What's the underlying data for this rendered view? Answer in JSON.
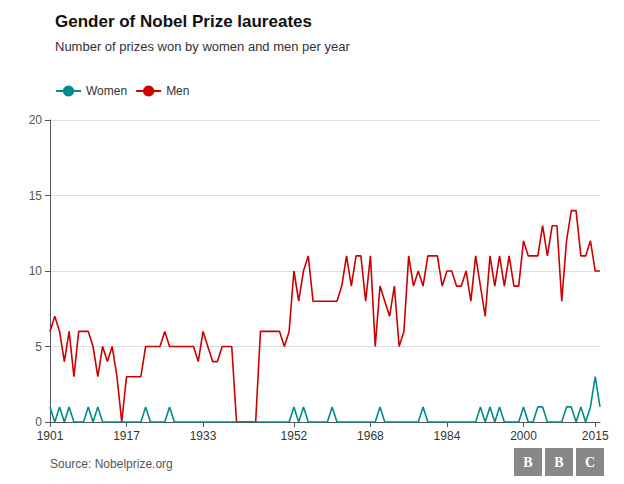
{
  "chart_data": {
    "type": "line",
    "title": "Gender of Nobel Prize laureates",
    "subtitle": "Number of prizes won by women and men per year",
    "source": "Source: Nobelprize.org",
    "logo": [
      "B",
      "B",
      "C"
    ],
    "x": [
      1901,
      1902,
      1903,
      1904,
      1905,
      1906,
      1907,
      1908,
      1909,
      1910,
      1911,
      1912,
      1913,
      1914,
      1915,
      1916,
      1917,
      1918,
      1919,
      1920,
      1921,
      1922,
      1923,
      1924,
      1925,
      1926,
      1927,
      1928,
      1929,
      1930,
      1931,
      1932,
      1933,
      1934,
      1935,
      1936,
      1937,
      1938,
      1939,
      1940,
      1941,
      1942,
      1943,
      1944,
      1945,
      1946,
      1947,
      1948,
      1949,
      1950,
      1951,
      1952,
      1953,
      1954,
      1955,
      1956,
      1957,
      1958,
      1959,
      1960,
      1961,
      1962,
      1963,
      1964,
      1965,
      1966,
      1967,
      1968,
      1969,
      1970,
      1971,
      1972,
      1973,
      1974,
      1975,
      1976,
      1977,
      1978,
      1979,
      1980,
      1981,
      1982,
      1983,
      1984,
      1985,
      1986,
      1987,
      1988,
      1989,
      1990,
      1991,
      1992,
      1993,
      1994,
      1995,
      1996,
      1997,
      1998,
      1999,
      2000,
      2001,
      2002,
      2003,
      2004,
      2005,
      2006,
      2007,
      2008,
      2009,
      2010,
      2011,
      2012,
      2013,
      2014,
      2015,
      2016
    ],
    "series": [
      {
        "name": "Women",
        "color": "#008B8B",
        "values": [
          1,
          0,
          1,
          0,
          1,
          0,
          0,
          0,
          1,
          0,
          1,
          0,
          0,
          0,
          0,
          0,
          0,
          0,
          0,
          0,
          1,
          0,
          0,
          0,
          0,
          1,
          0,
          0,
          0,
          0,
          0,
          0,
          0,
          0,
          0,
          0,
          0,
          0,
          0,
          0,
          0,
          0,
          0,
          0,
          0,
          0,
          0,
          0,
          0,
          0,
          0,
          1,
          0,
          1,
          0,
          0,
          0,
          0,
          0,
          1,
          0,
          0,
          0,
          0,
          0,
          0,
          0,
          0,
          0,
          1,
          0,
          0,
          0,
          0,
          0,
          0,
          0,
          0,
          1,
          0,
          0,
          0,
          0,
          0,
          0,
          0,
          0,
          0,
          0,
          0,
          1,
          0,
          1,
          0,
          1,
          0,
          0,
          0,
          0,
          1,
          0,
          0,
          1,
          1,
          0,
          0,
          0,
          0,
          1,
          1,
          0,
          1,
          0,
          1,
          3,
          1
        ]
      },
      {
        "name": "Men",
        "color": "#CC0000",
        "values": [
          6,
          7,
          6,
          4,
          6,
          3,
          6,
          6,
          6,
          5,
          3,
          5,
          4,
          5,
          3,
          0,
          3,
          3,
          3,
          3,
          5,
          5,
          5,
          5,
          6,
          5,
          5,
          5,
          5,
          5,
          5,
          4,
          6,
          5,
          4,
          4,
          5,
          5,
          5,
          0,
          0,
          0,
          0,
          0,
          6,
          6,
          6,
          6,
          6,
          5,
          6,
          10,
          8,
          10,
          11,
          8,
          8,
          8,
          8,
          8,
          8,
          9,
          11,
          9,
          11,
          11,
          8,
          11,
          5,
          9,
          8,
          7,
          9,
          5,
          6,
          11,
          9,
          10,
          9,
          11,
          11,
          11,
          9,
          10,
          10,
          9,
          9,
          10,
          8,
          11,
          9,
          7,
          11,
          9,
          11,
          9,
          11,
          9,
          9,
          12,
          11,
          11,
          11,
          13,
          11,
          13,
          13,
          8,
          12,
          14,
          14,
          11,
          11,
          12,
          10,
          10
        ]
      }
    ],
    "xlim": [
      1901,
      2016
    ],
    "xticks": [
      1901,
      1917,
      1933,
      1952,
      1968,
      1984,
      2000,
      2015
    ],
    "ylim": [
      0,
      20
    ],
    "yticks": [
      0,
      5,
      10,
      15,
      20
    ],
    "grid": "y",
    "legend": "top left"
  }
}
